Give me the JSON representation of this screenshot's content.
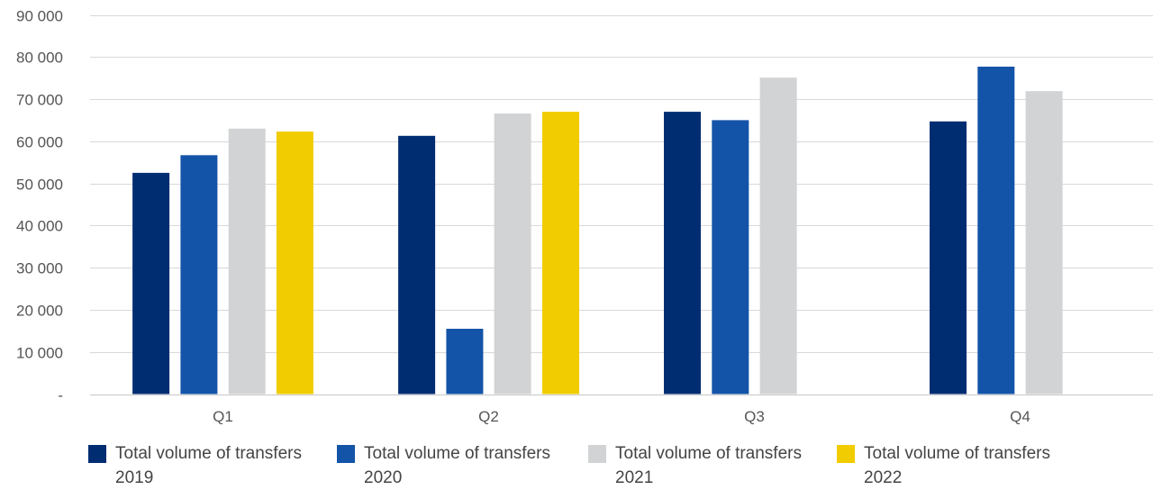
{
  "chart_data": {
    "type": "bar",
    "categories": [
      "Q1",
      "Q2",
      "Q3",
      "Q4"
    ],
    "series": [
      {
        "name": "Total volume of transfers 2019",
        "color": "#002d72",
        "values": [
          52500,
          61300,
          67000,
          64700
        ]
      },
      {
        "name": "Total volume of transfers 2020",
        "color": "#1454a8",
        "values": [
          56700,
          15500,
          65000,
          77700
        ]
      },
      {
        "name": "Total volume of transfers 2021",
        "color": "#d1d3d4",
        "values": [
          63000,
          66600,
          75100,
          71900
        ]
      },
      {
        "name": "Total volume of transfers 2022",
        "color": "#f0cc00",
        "values": [
          62300,
          67000,
          null,
          null
        ]
      }
    ],
    "ylim": [
      0,
      90000
    ],
    "yticks": [
      0,
      10000,
      20000,
      30000,
      40000,
      50000,
      60000,
      70000,
      80000,
      90000
    ],
    "ytick_labels": [
      "-",
      "10 000",
      "20 000",
      "30 000",
      "40 000",
      "50 000",
      "60 000",
      "70 000",
      "80 000",
      "90 000"
    ],
    "grid": true,
    "legend_position": "bottom",
    "title": "",
    "xlabel": "",
    "ylabel": ""
  }
}
